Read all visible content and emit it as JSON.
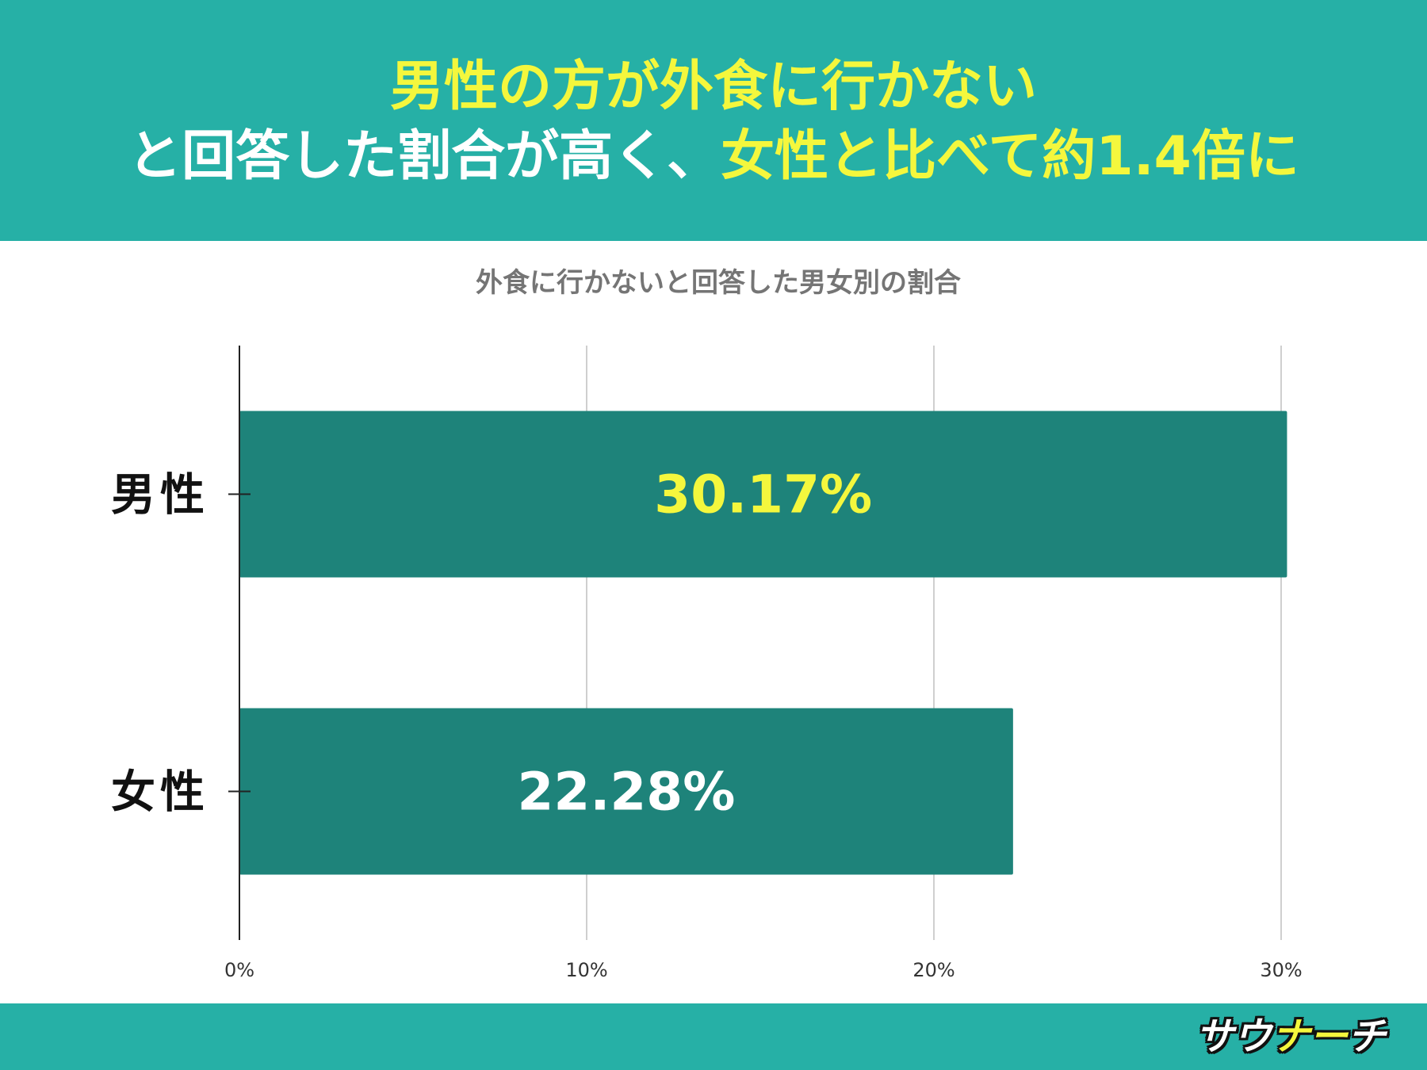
{
  "header": {
    "line1": "男性の方が外食に行かない",
    "line2_white": "と回答した割合が高く、",
    "line2_yellow": "女性と比べて約1.4倍に"
  },
  "footer": {
    "logo_part1": "サウ",
    "logo_part2": "ナー",
    "logo_part3": "チ"
  },
  "colors": {
    "header_bg": "#26b0a6",
    "bar": "#1e837a",
    "highlight": "#f4f73d",
    "grid": "#cfcfcf"
  },
  "chart_data": {
    "type": "bar",
    "orientation": "horizontal",
    "title": "外食に行かないと回答した男女別の割合",
    "categories": [
      "男性",
      "女性"
    ],
    "values": [
      30.17,
      22.28
    ],
    "data_labels": [
      "30.17%",
      "22.28%"
    ],
    "xlim": [
      0,
      30
    ],
    "x_ticks": [
      0,
      10,
      20,
      30
    ],
    "x_tick_labels": [
      "0%",
      "10%",
      "20%",
      "30%"
    ],
    "grid": true,
    "legend": "none"
  }
}
